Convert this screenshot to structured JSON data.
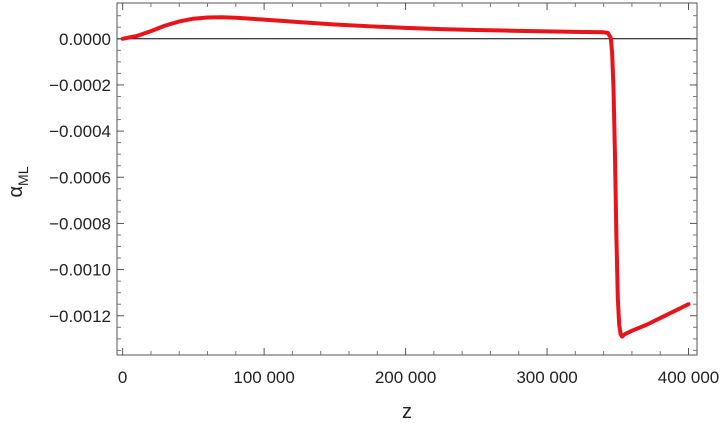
{
  "chart_data": {
    "type": "line",
    "xlabel": "z",
    "ylabel": {
      "symbol": "α",
      "subscript": "ML"
    },
    "xlim": [
      -4000,
      406000
    ],
    "ylim": [
      -0.00137,
      0.000155
    ],
    "x_ticks": [
      0,
      100000,
      200000,
      300000,
      400000
    ],
    "x_tick_labels": [
      "0",
      "100 000",
      "200 000",
      "300 000",
      "400 000"
    ],
    "y_ticks": [
      0,
      -0.0002,
      -0.0004,
      -0.0006,
      -0.0008,
      -0.001,
      -0.0012
    ],
    "y_tick_labels": [
      "0.0000",
      "−0.0002",
      "−0.0004",
      "−0.0006",
      "−0.0008",
      "−0.0010",
      "−0.0012"
    ],
    "zero_line": true,
    "grid": false,
    "series": [
      {
        "color": "#e8141a",
        "x": [
          0,
          10000,
          20000,
          30000,
          40000,
          50000,
          60000,
          70000,
          80000,
          100000,
          125000,
          150000,
          175000,
          200000,
          225000,
          250000,
          275000,
          300000,
          320000,
          340000,
          343000,
          345000,
          346000,
          347000,
          348000,
          349000,
          350000,
          351000,
          352000,
          353000,
          355000,
          360000,
          370000,
          380000,
          390000,
          400000
        ],
        "y": [
          0,
          1.2e-05,
          3.3e-05,
          5.7e-05,
          7.5e-05,
          8.7e-05,
          9.2e-05,
          9.3e-05,
          9.1e-05,
          8.3e-05,
          7.2e-05,
          6.2e-05,
          5.4e-05,
          4.7e-05,
          4.2e-05,
          3.8e-05,
          3.5e-05,
          3.2e-05,
          3e-05,
          2.8e-05,
          2.5e-05,
          5e-06,
          -6e-05,
          -0.00022,
          -0.0005,
          -0.00085,
          -0.00112,
          -0.00124,
          -0.00128,
          -0.00129,
          -0.00128,
          -0.001265,
          -0.00124,
          -0.00121,
          -0.00118,
          -0.00115
        ]
      }
    ]
  }
}
